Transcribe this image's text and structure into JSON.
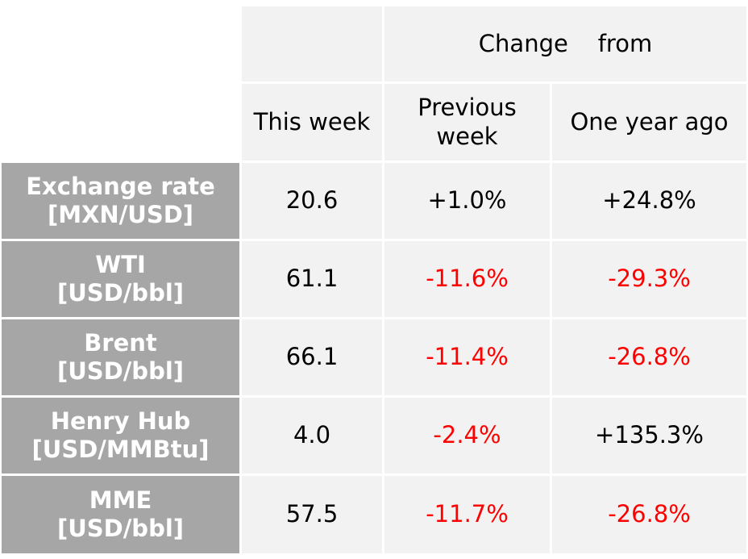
{
  "header": {
    "change_from": "Change    from",
    "this_week": "This week",
    "previous_week_line1": "Previous",
    "previous_week_line2": "week",
    "one_year_ago": "One year ago"
  },
  "rows": [
    {
      "label_line1": "Exchange rate",
      "label_line2": "[MXN/USD]",
      "this_week": "20.6",
      "previous_week": "+1.0%",
      "one_year_ago": "+24.8%"
    },
    {
      "label_line1": "WTI",
      "label_line2": "[USD/bbl]",
      "this_week": "61.1",
      "previous_week": "-11.6%",
      "one_year_ago": "-29.3%"
    },
    {
      "label_line1": "Brent",
      "label_line2": "[USD/bbl]",
      "this_week": "66.1",
      "previous_week": "-11.4%",
      "one_year_ago": "-26.8%"
    },
    {
      "label_line1": "Henry Hub",
      "label_line2": "[USD/MMBtu]",
      "this_week": "4.0",
      "previous_week": "-2.4%",
      "one_year_ago": "+135.3%"
    },
    {
      "label_line1": "MME",
      "label_line2": "[USD/bbl]",
      "this_week": "57.5",
      "previous_week": "-11.7%",
      "one_year_ago": "-26.8%"
    }
  ],
  "colors": {
    "label_bg": "#a6a6a6",
    "cell_bg": "#f2f2f2",
    "negative": "#ff0000",
    "positive": "#000000"
  }
}
